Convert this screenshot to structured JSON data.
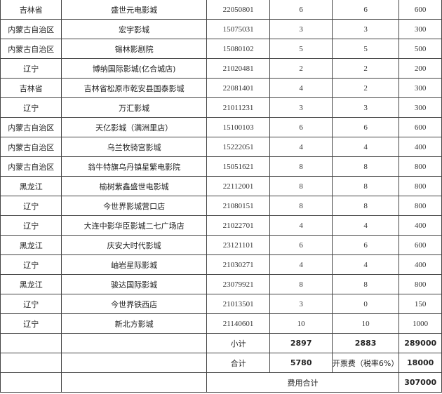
{
  "rows": [
    [
      "吉林省",
      "盛世元电影城",
      "22050801",
      "6",
      "6",
      "600"
    ],
    [
      "内蒙古自治区",
      "宏宇影城",
      "15075031",
      "3",
      "3",
      "300"
    ],
    [
      "内蒙古自治区",
      "锡林影剧院",
      "15080102",
      "5",
      "5",
      "500"
    ],
    [
      "辽宁",
      "博纳国际影城(亿合城店)",
      "21020481",
      "2",
      "2",
      "200"
    ],
    [
      "吉林省",
      "吉林省松原市乾安县国泰影城",
      "22081401",
      "4",
      "2",
      "300"
    ],
    [
      "辽宁",
      "万汇影城",
      "21011231",
      "3",
      "3",
      "300"
    ],
    [
      "内蒙古自治区",
      "天亿影城（满洲里店）",
      "15100103",
      "6",
      "6",
      "600"
    ],
    [
      "内蒙古自治区",
      "乌兰牧骑宫影城",
      "15222051",
      "4",
      "4",
      "400"
    ],
    [
      "内蒙古自治区",
      "翁牛特旗乌丹镇星繁电影院",
      "15051621",
      "8",
      "8",
      "800"
    ],
    [
      "黑龙江",
      "榆树紫鑫盛世电影城",
      "22112001",
      "8",
      "8",
      "800"
    ],
    [
      "辽宁",
      "今世界影城营口店",
      "21080151",
      "8",
      "8",
      "800"
    ],
    [
      "辽宁",
      "大连中影华臣影城二七广场店",
      "21022701",
      "4",
      "4",
      "400"
    ],
    [
      "黑龙江",
      "庆安大时代影城",
      "23121101",
      "6",
      "6",
      "600"
    ],
    [
      "辽宁",
      "岫岩星际影城",
      "21030271",
      "4",
      "4",
      "400"
    ],
    [
      "黑龙江",
      "骏达国际影城",
      "23079921",
      "8",
      "8",
      "800"
    ],
    [
      "辽宁",
      "今世界铁西店",
      "21013501",
      "3",
      "0",
      "150"
    ],
    [
      "辽宁",
      "新北方影城",
      "21140601",
      "10",
      "10",
      "1000"
    ]
  ],
  "subtotal": {
    "label": "小计",
    "col4": "2897",
    "col5": "2883",
    "col6": "289000"
  },
  "total": {
    "label": "合计",
    "col4": "5780",
    "fee_label": "开票费（税率6%）",
    "col6": "18000"
  },
  "grand_total": {
    "label": "费用合计",
    "value": "307000"
  }
}
